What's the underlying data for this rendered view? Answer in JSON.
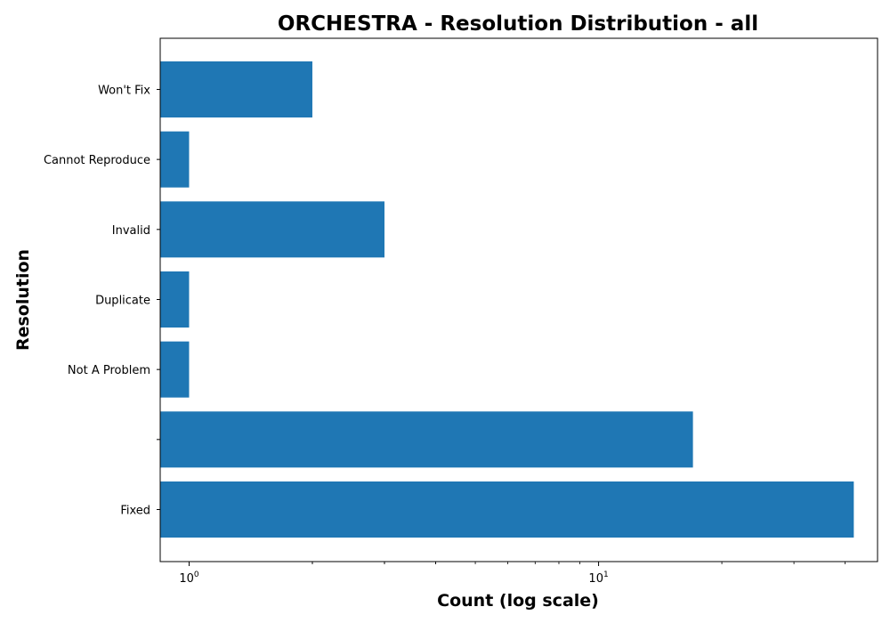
{
  "chart_data": {
    "type": "bar",
    "orientation": "horizontal",
    "title": "ORCHESTRA - Resolution Distribution - all",
    "xlabel": "Count (log scale)",
    "ylabel": "Resolution",
    "x_scale": "log",
    "xlim": [
      0.85,
      48
    ],
    "x_ticks": [
      {
        "value": 1,
        "base": "10",
        "exp": "0"
      },
      {
        "value": 10,
        "base": "10",
        "exp": "1"
      }
    ],
    "categories": [
      "Fixed",
      "",
      "Not A Problem",
      "Duplicate",
      "Invalid",
      "Cannot Reproduce",
      "Won't Fix"
    ],
    "values": [
      42,
      17,
      1,
      1,
      3,
      1,
      2
    ],
    "bar_color": "#1f77b4",
    "grid": false,
    "legend": "none"
  }
}
